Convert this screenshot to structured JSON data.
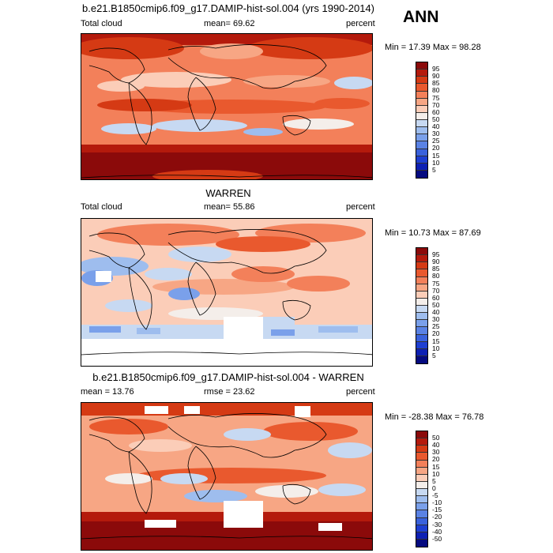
{
  "season": "ANN",
  "panels": [
    {
      "title": "b.e21.B1850cmip6.f09_g17.DAMIP-hist-sol.004 (yrs 1990-2014)",
      "left_label": "Total cloud",
      "center_label": "mean=  69.62",
      "right_label": "percent",
      "minmax": "Min =  17.39 Max =  98.28",
      "levels": [
        "95",
        "90",
        "85",
        "80",
        "75",
        "70",
        "60",
        "50",
        "40",
        "30",
        "25",
        "20",
        "15",
        "10",
        "5"
      ],
      "colors": [
        "#8b0a0a",
        "#b41a0c",
        "#d53a14",
        "#e9592e",
        "#f3805a",
        "#f7a684",
        "#fbcdb8",
        "#f4eeea",
        "#c7d9f2",
        "#9ebdee",
        "#7aa0ea",
        "#5a82e4",
        "#3a62dc",
        "#1e3fd2",
        "#0d20b4",
        "#050a80"
      ]
    },
    {
      "title": "WARREN",
      "left_label": "Total cloud",
      "center_label": "mean=  55.86",
      "right_label": "percent",
      "minmax": "Min =  10.73 Max =  87.69",
      "levels": [
        "95",
        "90",
        "85",
        "80",
        "75",
        "70",
        "60",
        "50",
        "40",
        "30",
        "25",
        "20",
        "15",
        "10",
        "5"
      ],
      "colors": [
        "#8b0a0a",
        "#b41a0c",
        "#d53a14",
        "#e9592e",
        "#f3805a",
        "#f7a684",
        "#fbcdb8",
        "#f4eeea",
        "#c7d9f2",
        "#9ebdee",
        "#7aa0ea",
        "#5a82e4",
        "#3a62dc",
        "#1e3fd2",
        "#0d20b4",
        "#050a80"
      ]
    },
    {
      "title": "b.e21.B1850cmip6.f09_g17.DAMIP-hist-sol.004 - WARREN",
      "left_label": "mean =  13.76",
      "center_label": "rmse =  23.62",
      "right_label": "percent",
      "minmax": "Min = -28.38 Max =  76.78",
      "levels": [
        "50",
        "40",
        "30",
        "20",
        "15",
        "10",
        "5",
        "0",
        "-5",
        "-10",
        "-15",
        "-20",
        "-30",
        "-40",
        "-50"
      ],
      "colors": [
        "#8b0a0a",
        "#b41a0c",
        "#d53a14",
        "#e9592e",
        "#f3805a",
        "#f7a684",
        "#fbcdb8",
        "#f4eeea",
        "#c7d9f2",
        "#9ebdee",
        "#7aa0ea",
        "#5a82e4",
        "#3a62dc",
        "#1e3fd2",
        "#0d20b4",
        "#050a80"
      ]
    }
  ]
}
